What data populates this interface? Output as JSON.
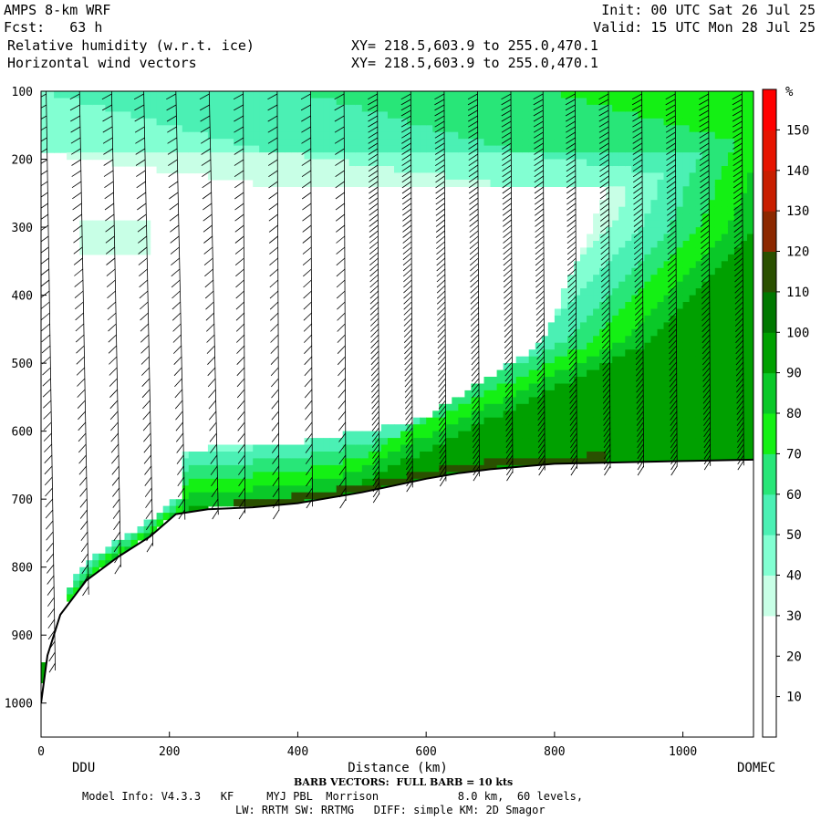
{
  "header": {
    "model": "AMPS 8-km WRF",
    "init": "Init: 00 UTC Sat 26 Jul 25",
    "fcst": "Fcst:   63 h",
    "valid": "Valid: 15 UTC Mon 28 Jul 25",
    "field1": "Relative humidity (w.r.t. ice)",
    "field2": "Horizontal wind vectors",
    "xy1": "XY= 218.5,603.9 to 255.0,470.1",
    "xy2": "XY= 218.5,603.9 to 255.0,470.1"
  },
  "footer": {
    "barb": "BARB VECTORS:  FULL BARB = 10 kts",
    "model_info": "Model Info: V4.3.3   KF     MYJ PBL  Morrison            8.0 km,  60 levels,",
    "physics": "LW: RRTM SW: RRTMG   DIFF: simple KM: 2D Smagor"
  },
  "chart_data": {
    "type": "heatmap",
    "xlabel": "Distance (km)",
    "x_endpoint_labels": [
      "DDU",
      "DOMEC"
    ],
    "xlim": [
      0,
      1110
    ],
    "ylim": [
      1050,
      100
    ],
    "x_ticks": [
      0,
      200,
      400,
      600,
      800,
      1000
    ],
    "y_ticks": [
      100,
      200,
      300,
      400,
      500,
      600,
      700,
      800,
      900,
      1000
    ],
    "colorbar": {
      "unit": "%",
      "levels": [
        0,
        10,
        20,
        30,
        40,
        50,
        60,
        70,
        80,
        90,
        100,
        110,
        120,
        130,
        140,
        150,
        160
      ],
      "tick_labels": [
        10,
        20,
        30,
        40,
        50,
        60,
        70,
        80,
        90,
        100,
        110,
        120,
        130,
        140,
        150
      ],
      "colors": [
        "#ffffff",
        "#ffffff",
        "#ffffff",
        "#c8ffe6",
        "#82ffd2",
        "#4bf0b4",
        "#28e678",
        "#14f014",
        "#0ac828",
        "#00a000",
        "#007800",
        "#2a5000",
        "#8c2800",
        "#c81e00",
        "#e61400",
        "#ff0000"
      ]
    },
    "terrain_surface": [
      [
        0,
        1000
      ],
      [
        10,
        930
      ],
      [
        30,
        870
      ],
      [
        70,
        820
      ],
      [
        120,
        785
      ],
      [
        170,
        755
      ],
      [
        210,
        722
      ],
      [
        260,
        715
      ],
      [
        330,
        712
      ],
      [
        400,
        706
      ],
      [
        450,
        698
      ],
      [
        500,
        690
      ],
      [
        560,
        678
      ],
      [
        600,
        670
      ],
      [
        650,
        662
      ],
      [
        700,
        656
      ],
      [
        750,
        652
      ],
      [
        800,
        648
      ],
      [
        900,
        646
      ],
      [
        1000,
        644
      ],
      [
        1110,
        642
      ]
    ],
    "barb_columns_km": [
      8,
      60,
      110,
      160,
      210,
      262,
      315,
      368,
      420,
      472,
      524,
      576,
      628,
      680,
      732,
      782,
      832,
      884,
      936,
      988,
      1040,
      1092
    ]
  }
}
